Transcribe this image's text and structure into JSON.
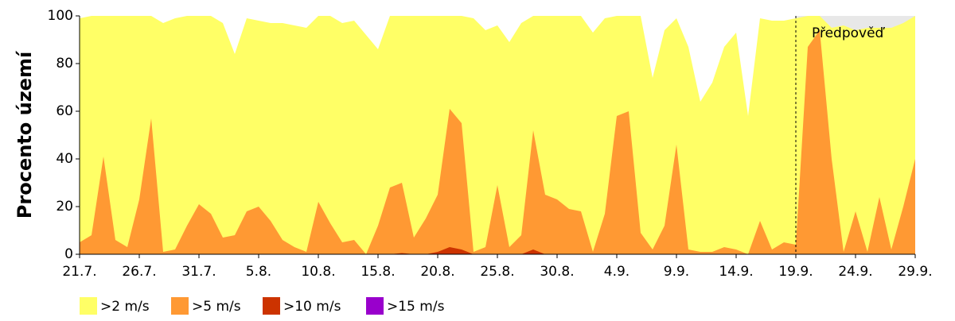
{
  "chart_data": {
    "type": "area",
    "y_label": "Procento území",
    "categories": [
      "21.7.",
      null,
      null,
      null,
      null,
      "26.7.",
      null,
      null,
      null,
      null,
      "31.7.",
      null,
      null,
      null,
      null,
      "5.8.",
      null,
      null,
      null,
      null,
      "10.8.",
      null,
      null,
      null,
      null,
      "15.8.",
      null,
      null,
      null,
      null,
      "20.8.",
      null,
      null,
      null,
      null,
      "25.8.",
      null,
      null,
      null,
      null,
      "30.8.",
      null,
      null,
      null,
      null,
      "4.9.",
      null,
      null,
      null,
      null,
      "9.9.",
      null,
      null,
      null,
      null,
      "14.9.",
      null,
      null,
      null,
      null,
      "19.9.",
      null,
      null,
      null,
      null,
      "24.9.",
      null,
      null,
      null,
      null,
      "29.9."
    ],
    "series": [
      {
        "name": ">2 m/s",
        "color": "#ffff66",
        "values": [
          99,
          100,
          100,
          100,
          100,
          100,
          100,
          97,
          99,
          100,
          100,
          100,
          97,
          84,
          99,
          98,
          97,
          97,
          96,
          95,
          100,
          100,
          97,
          98,
          92,
          86,
          100,
          100,
          100,
          100,
          100,
          100,
          100,
          99,
          94,
          96,
          89,
          97,
          100,
          100,
          100,
          100,
          100,
          93,
          99,
          100,
          100,
          100,
          74,
          94,
          99,
          87,
          64,
          72,
          87,
          93,
          58,
          99,
          98,
          98,
          99,
          100,
          100,
          95,
          96,
          94,
          95,
          95,
          95,
          97,
          100
        ]
      },
      {
        "name": ">5 m/s",
        "color": "#ff9933",
        "values": [
          5,
          8,
          41,
          6,
          3,
          23,
          57,
          1,
          2,
          12,
          21,
          17,
          7,
          8,
          18,
          20,
          14,
          6,
          3,
          1,
          22,
          13,
          5,
          6,
          0,
          12,
          28,
          30,
          7,
          15,
          25,
          61,
          55,
          1,
          3,
          29,
          3,
          8,
          52,
          25,
          23,
          19,
          18,
          1,
          17,
          58,
          60,
          9,
          2,
          12,
          46,
          2,
          1,
          1,
          3,
          2,
          0,
          14,
          2,
          5,
          4,
          87,
          94,
          40,
          1,
          18,
          1,
          24,
          2,
          20,
          40
        ]
      },
      {
        "name": ">10 m/s",
        "color": "#cc3300",
        "values": [
          0,
          0,
          0,
          0,
          0,
          0,
          0,
          0,
          0,
          0,
          0,
          0,
          0,
          0,
          0,
          0,
          0,
          0,
          0,
          0,
          0,
          0,
          0,
          0,
          0,
          0,
          0,
          0.5,
          0,
          0,
          1,
          3,
          2,
          0,
          0,
          0,
          0,
          0,
          2,
          0,
          0,
          0,
          0,
          0,
          0,
          0,
          0,
          0,
          0,
          0,
          0,
          0,
          0,
          0,
          0,
          0,
          0,
          0,
          0,
          0,
          0,
          0,
          0,
          0,
          0,
          0,
          0,
          0,
          0,
          0,
          0
        ]
      },
      {
        "name": ">15 m/s",
        "color": "#9900cc",
        "values": [
          0,
          0,
          0,
          0,
          0,
          0,
          0,
          0,
          0,
          0,
          0,
          0,
          0,
          0,
          0,
          0,
          0,
          0,
          0,
          0,
          0,
          0,
          0,
          0,
          0,
          0,
          0,
          0,
          0,
          0,
          0,
          0,
          0,
          0,
          0,
          0,
          0,
          0,
          0,
          0,
          0,
          0,
          0,
          0,
          0,
          0,
          0,
          0,
          0,
          0,
          0,
          0,
          0,
          0,
          0,
          0,
          0,
          0,
          0,
          0,
          0,
          0,
          0,
          0,
          0,
          0,
          0,
          0,
          0,
          0,
          0
        ]
      }
    ],
    "annotations": [
      {
        "text": "Předpověď",
        "x": "19.9."
      }
    ],
    "ylim": [
      0,
      100
    ],
    "yticks": [
      0,
      20,
      40,
      60,
      80,
      100
    ],
    "grid": false
  }
}
